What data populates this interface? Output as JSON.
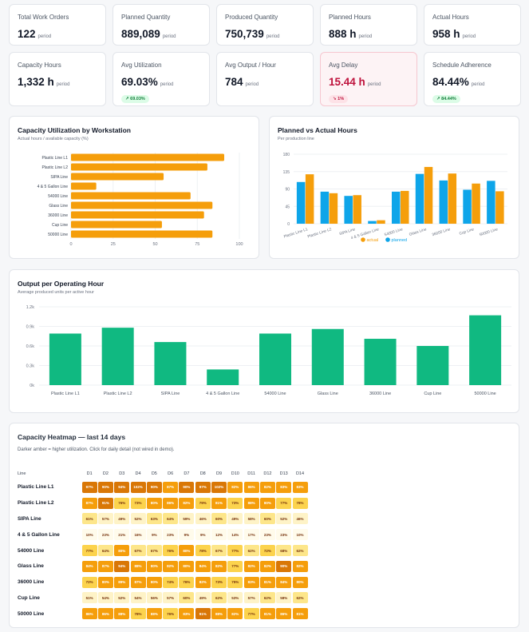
{
  "kpis_row1": [
    {
      "label": "Total Work Orders",
      "value": "122",
      "sub": "period"
    },
    {
      "label": "Planned Quantity",
      "value": "889,089",
      "sub": "period"
    },
    {
      "label": "Produced Quantity",
      "value": "750,739",
      "sub": "period"
    },
    {
      "label": "Planned Hours",
      "value": "888 h",
      "sub": "period"
    },
    {
      "label": "Actual Hours",
      "value": "958 h",
      "sub": "period"
    }
  ],
  "kpis_row2": [
    {
      "label": "Capacity Hours",
      "value": "1,332 h",
      "sub": "period"
    },
    {
      "label": "Avg Utilization",
      "value": "69.03%",
      "sub": "period",
      "delta": "↗ 69.03%"
    },
    {
      "label": "Avg Output / Hour",
      "value": "784",
      "sub": "period"
    },
    {
      "label": "Avg Delay",
      "value": "15.44 h",
      "sub": "period",
      "delta": "↘ 1%"
    },
    {
      "label": "Schedule Adherence",
      "value": "84.44%",
      "sub": "period",
      "delta": "↗ 84.44%"
    }
  ],
  "utilization_chart": {
    "title": "Capacity Utilization by Workstation",
    "subtitle": "Actual hours / available capacity (%)",
    "chart_data": {
      "type": "bar",
      "orientation": "horizontal",
      "categories": [
        "Plastic Line L1",
        "Plastic Line L2",
        "SIPA Line",
        "4 & 5 Gallon Line",
        "54000 Line",
        "Glass Line",
        "36000 Line",
        "Cup Line",
        "50000 Line"
      ],
      "values": [
        91,
        81,
        55,
        15,
        71,
        84,
        79,
        54,
        84
      ],
      "xlim": [
        0,
        100
      ],
      "xticks": [
        "0",
        "25",
        "50",
        "75",
        "100"
      ],
      "color": "#f59e0b"
    }
  },
  "planned_actual_chart": {
    "title": "Planned vs Actual Hours",
    "subtitle": "Per production line",
    "chart_data": {
      "type": "bar",
      "categories": [
        "Plastic Line L1",
        "Plastic Line L2",
        "SIPA Line",
        "4 & 5 Gallon Line",
        "54000 Line",
        "Glass Line",
        "36000 Line",
        "Cup Line",
        "50000 Line"
      ],
      "series": [
        {
          "name": "planned",
          "values": [
            108,
            83,
            72,
            7,
            83,
            129,
            112,
            88,
            111
          ],
          "color": "#0ea5e9"
        },
        {
          "name": "actual",
          "values": [
            128,
            79,
            74,
            9,
            85,
            147,
            130,
            104,
            84
          ],
          "color": "#f59e0b"
        }
      ],
      "ylim": [
        0,
        180
      ],
      "yticks": [
        "0",
        "45",
        "90",
        "135",
        "180"
      ],
      "legend": "bottom"
    }
  },
  "output_chart": {
    "title": "Output per Operating Hour",
    "subtitle": "Average produced units per active hour",
    "chart_data": {
      "type": "bar",
      "categories": [
        "Plastic Line L1",
        "Plastic Line L2",
        "SIPA Line",
        "4 & 5 Gallon Line",
        "54000 Line",
        "Glass Line",
        "36000 Line",
        "Cup Line",
        "50000 Line"
      ],
      "values": [
        790,
        880,
        660,
        240,
        790,
        860,
        710,
        600,
        1070
      ],
      "ylim": [
        0,
        1200
      ],
      "yticks": [
        "0k",
        "0.3k",
        "0.6k",
        "0.9k",
        "1.2k"
      ],
      "color": "#10b981"
    }
  },
  "heatmap": {
    "title": "Capacity Heatmap — last 14 days",
    "subtitle": "Darker amber = higher utilization. Click for daily detail (not wired in demo).",
    "row_header": "Line",
    "days": [
      "D1",
      "D2",
      "D3",
      "D4",
      "D5",
      "D6",
      "D7",
      "D8",
      "D9",
      "D10",
      "D11",
      "D12",
      "D13",
      "D14"
    ],
    "rows": [
      {
        "label": "Plastic Line L1",
        "values": [
          97,
          90,
          94,
          102,
          90,
          87,
          90,
          97,
          102,
          82,
          86,
          82,
          83,
          83
        ]
      },
      {
        "label": "Plastic Line L2",
        "values": [
          87,
          91,
          76,
          73,
          80,
          86,
          82,
          79,
          81,
          73,
          88,
          80,
          77,
          78
        ]
      },
      {
        "label": "SIPA Line",
        "values": [
          61,
          57,
          49,
          52,
          63,
          64,
          59,
          46,
          60,
          49,
          58,
          60,
          52,
          46
        ]
      },
      {
        "label": "4 & 5 Gallon Line",
        "values": [
          10,
          23,
          21,
          16,
          9,
          23,
          9,
          9,
          12,
          14,
          17,
          23,
          23,
          10
        ]
      },
      {
        "label": "54000 Line",
        "values": [
          77,
          64,
          80,
          67,
          67,
          76,
          80,
          78,
          67,
          77,
          62,
          72,
          68,
          62
        ]
      },
      {
        "label": "Glass Line",
        "values": [
          84,
          87,
          94,
          88,
          80,
          82,
          80,
          84,
          82,
          77,
          82,
          82,
          90,
          82
        ]
      },
      {
        "label": "36000 Line",
        "values": [
          72,
          80,
          89,
          87,
          80,
          74,
          76,
          82,
          73,
          75,
          83,
          81,
          84,
          80
        ]
      },
      {
        "label": "Cup Line",
        "values": [
          51,
          54,
          52,
          54,
          56,
          57,
          60,
          49,
          62,
          53,
          57,
          62,
          58,
          62
        ]
      },
      {
        "label": "50000 Line",
        "values": [
          86,
          86,
          88,
          78,
          88,
          76,
          83,
          91,
          88,
          82,
          77,
          81,
          86,
          81
        ]
      }
    ]
  }
}
